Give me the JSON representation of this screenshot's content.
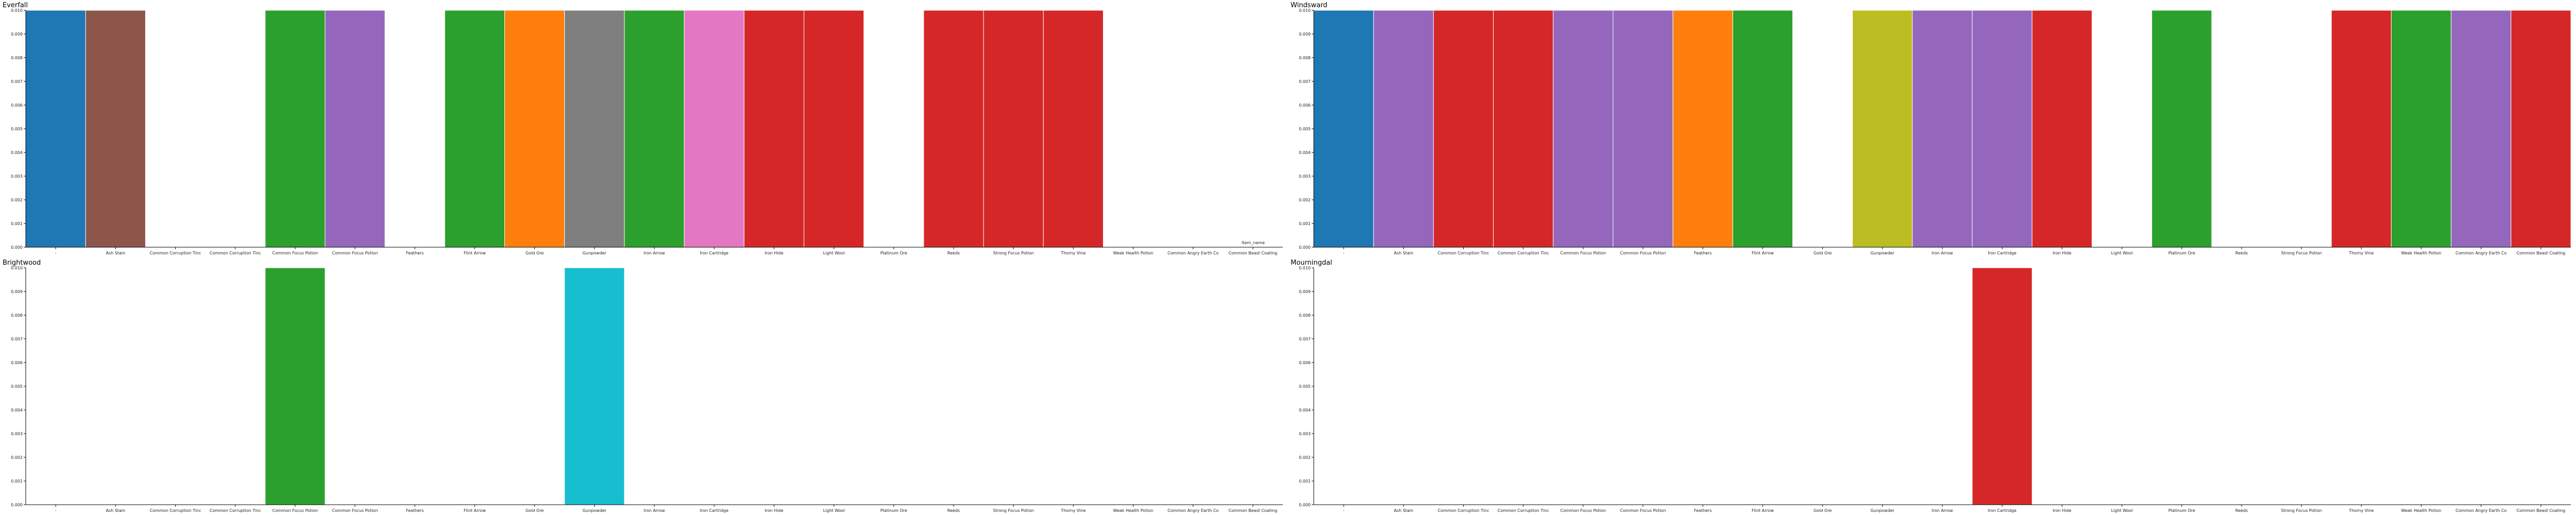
{
  "chart_data": [
    {
      "type": "bar",
      "title": "Everfall",
      "ylim": [
        0,
        0.01
      ],
      "yticks": [
        "0.000",
        "0.001",
        "0.002",
        "0.003",
        "0.004",
        "0.005",
        "0.006",
        "0.007",
        "0.008",
        "0.009",
        "0.010"
      ],
      "categories": [
        "-",
        "Ash Stain",
        "Common Corruption Tinc",
        "Common Corruption Tinc",
        "Common Focus Potion",
        "Common Focus Potion",
        "Feathers",
        "Flint Arrow",
        "Gold Ore",
        "Gunpowder",
        "Iron Arrow",
        "Iron Cartridge",
        "Iron Hide",
        "Light Wool",
        "Platinum Ore",
        "Reeds",
        "Strong Focus Potion",
        "Thorny Vine",
        "Weak Health Potion",
        "Common Angry Earth Co",
        "Common Beast Coating"
      ],
      "values": [
        0.01,
        0.01,
        0,
        0,
        0.01,
        0.01,
        0,
        0.01,
        0.01,
        0.01,
        0.01,
        0.01,
        0.01,
        0.01,
        0,
        0.01,
        0.01,
        0.01,
        0,
        0,
        0
      ],
      "colors": [
        "#1f77b4",
        "#8c564b",
        "",
        "",
        "#2ca02c",
        "#9467bd",
        "",
        "#2ca02c",
        "#ff7f0e",
        "#7f7f7f",
        "#2ca02c",
        "#e377c2",
        "#d62728",
        "#d62728",
        "",
        "#d62728",
        "#d62728",
        "#d62728",
        "",
        "",
        ""
      ],
      "legend": "Item_name",
      "grid": false
    },
    {
      "type": "bar",
      "title": "Windsward",
      "ylim": [
        0,
        0.01
      ],
      "yticks": [
        "0.000",
        "0.001",
        "0.002",
        "0.003",
        "0.004",
        "0.005",
        "0.006",
        "0.007",
        "0.008",
        "0.009",
        "0.010"
      ],
      "categories": [
        "-",
        "Ash Stain",
        "Common Corruption Tinc",
        "Common Corruption Tinc",
        "Common Focus Potion",
        "Common Focus Potion",
        "Feathers",
        "Flint Arrow",
        "Gold Ore",
        "Gunpowder",
        "Iron Arrow",
        "Iron Cartridge",
        "Iron Hide",
        "Light Wool",
        "Platinum Ore",
        "Reeds",
        "Strong Focus Potion",
        "Thorny Vine",
        "Weak Health Potion",
        "Common Angry Earth Co",
        "Common Beast Coating"
      ],
      "values": [
        0.01,
        0.01,
        0.01,
        0.01,
        0.01,
        0.01,
        0.01,
        0.01,
        0,
        0.01,
        0.01,
        0.01,
        0.01,
        0,
        0.01,
        0,
        0,
        0.01,
        0.01,
        0.01,
        0.01
      ],
      "colors": [
        "#1f77b4",
        "#9467bd",
        "#d62728",
        "#d62728",
        "#9467bd",
        "#9467bd",
        "#ff7f0e",
        "#2ca02c",
        "",
        "#bcbd22",
        "#9467bd",
        "#9467bd",
        "#d62728",
        "",
        "#2ca02c",
        "",
        "",
        "#d62728",
        "#2ca02c",
        "#9467bd",
        "#d62728"
      ],
      "legend": "",
      "grid": false
    },
    {
      "type": "bar",
      "title": "Brightwood",
      "ylim": [
        0,
        0.01
      ],
      "yticks": [
        "0.000",
        "0.001",
        "0.002",
        "0.003",
        "0.004",
        "0.005",
        "0.006",
        "0.007",
        "0.008",
        "0.009",
        "0.010"
      ],
      "categories": [
        "-",
        "Ash Stain",
        "Common Corruption Tinc",
        "Common Corruption Tinc",
        "Common Focus Potion",
        "Common Focus Potion",
        "Feathers",
        "Flint Arrow",
        "Gold Ore",
        "Gunpowder",
        "Iron Arrow",
        "Iron Cartridge",
        "Iron Hide",
        "Light Wool",
        "Platinum Ore",
        "Reeds",
        "Strong Focus Potion",
        "Thorny Vine",
        "Weak Health Potion",
        "Common Angry Earth Co",
        "Common Beast Coating"
      ],
      "values": [
        0,
        0,
        0,
        0,
        0.01,
        0,
        0,
        0,
        0,
        0.01,
        0,
        0,
        0,
        0,
        0,
        0,
        0,
        0,
        0,
        0,
        0
      ],
      "colors": [
        "",
        "",
        "",
        "",
        "#2ca02c",
        "",
        "",
        "",
        "",
        "#17becf",
        "",
        "",
        "",
        "",
        "",
        "",
        "",
        "",
        "",
        "",
        ""
      ],
      "legend": "",
      "grid": false
    },
    {
      "type": "bar",
      "title": "Mourningdal",
      "ylim": [
        0,
        0.01
      ],
      "yticks": [
        "0.000",
        "0.001",
        "0.002",
        "0.003",
        "0.004",
        "0.005",
        "0.006",
        "0.007",
        "0.008",
        "0.009",
        "0.010"
      ],
      "categories": [
        "-",
        "Ash Stain",
        "Common Corruption Tinc",
        "Common Corruption Tinc",
        "Common Focus Potion",
        "Common Focus Potion",
        "Feathers",
        "Flint Arrow",
        "Gold Ore",
        "Gunpowder",
        "Iron Arrow",
        "Iron Cartridge",
        "Iron Hide",
        "Light Wool",
        "Platinum Ore",
        "Reeds",
        "Strong Focus Potion",
        "Thorny Vine",
        "Weak Health Potion",
        "Common Angry Earth Co",
        "Common Beast Coating"
      ],
      "values": [
        0,
        0,
        0,
        0,
        0,
        0,
        0,
        0,
        0,
        0,
        0,
        0.01,
        0,
        0,
        0,
        0,
        0,
        0,
        0,
        0,
        0
      ],
      "colors": [
        "",
        "",
        "",
        "",
        "",
        "",
        "",
        "",
        "",
        "",
        "",
        "#d62728",
        "",
        "",
        "",
        "",
        "",
        "",
        "",
        "",
        ""
      ],
      "legend": "",
      "grid": false
    }
  ]
}
